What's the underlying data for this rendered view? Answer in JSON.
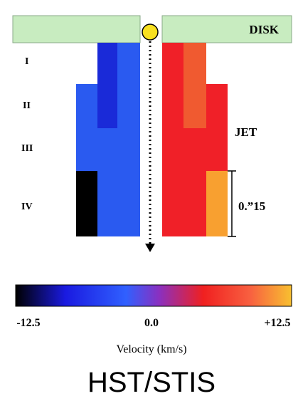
{
  "disk_label": "DISK",
  "jet_label": "JET",
  "knots": [
    "I",
    "II",
    "III",
    "IV"
  ],
  "scale_label": "0.”15",
  "colorbar": {
    "labels": [
      "-12.5",
      "0.0",
      "+12.5"
    ],
    "title": "Velocity (km/s)"
  },
  "caption": "HST/STIS"
}
